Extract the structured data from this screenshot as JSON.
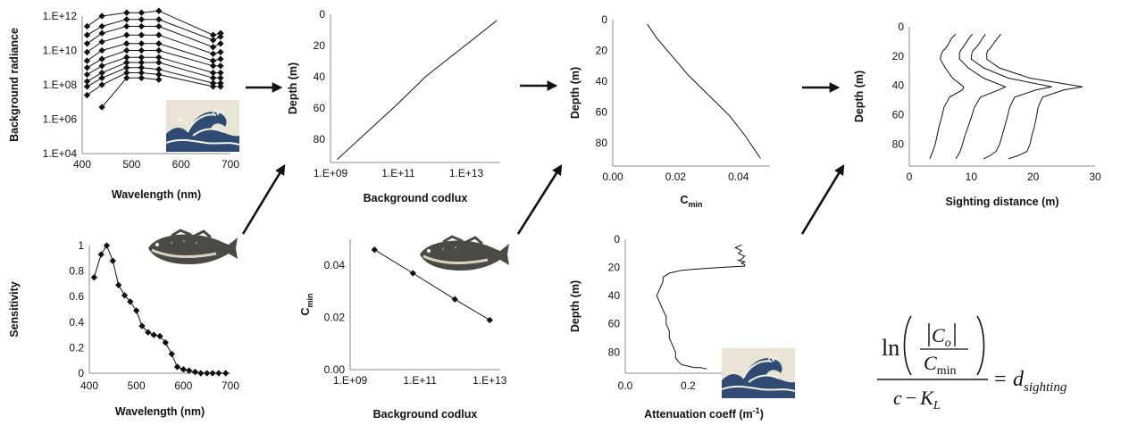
{
  "chart_data": [
    {
      "id": "radiance",
      "type": "line",
      "xlabel": "Wavelength (nm)",
      "ylabel": "Background radiance",
      "xlim": [
        400,
        700
      ],
      "ylim_log10": [
        4,
        12
      ],
      "yscale": "log",
      "xticks": [
        400,
        500,
        600,
        700
      ],
      "yticks": [
        {
          "v": 12,
          "label": "1.E+12"
        },
        {
          "v": 10,
          "label": "1.E+10"
        },
        {
          "v": 8,
          "label": "1.E+08"
        },
        {
          "v": 6,
          "label": "1.E+06"
        },
        {
          "v": 4,
          "label": "1.E+04"
        }
      ],
      "x": [
        410,
        440,
        490,
        520,
        555,
        665,
        680
      ],
      "series": [
        {
          "values_log10": [
            11.4,
            12.0,
            12.2,
            12.2,
            12.3,
            10.9,
            11.0
          ]
        },
        {
          "values_log10": [
            10.9,
            11.4,
            11.8,
            11.8,
            11.8,
            10.6,
            10.8
          ]
        },
        {
          "values_log10": [
            10.4,
            11.0,
            11.4,
            11.4,
            11.4,
            10.2,
            10.4
          ]
        },
        {
          "values_log10": [
            9.9,
            10.5,
            10.9,
            10.9,
            10.9,
            9.8,
            9.9
          ]
        },
        {
          "values_log10": [
            9.4,
            10.0,
            10.4,
            10.4,
            10.4,
            9.4,
            9.5
          ]
        },
        {
          "values_log10": [
            9.0,
            9.5,
            10.0,
            10.0,
            10.0,
            9.1,
            9.1
          ]
        },
        {
          "values_log10": [
            8.6,
            9.1,
            9.6,
            9.6,
            9.6,
            8.7,
            8.7
          ]
        },
        {
          "values_log10": [
            8.2,
            8.7,
            9.3,
            9.3,
            9.3,
            8.4,
            8.4
          ]
        },
        {
          "values_log10": [
            7.9,
            8.4,
            9.0,
            9.0,
            8.9,
            8.1,
            8.1
          ]
        },
        {
          "values_log10": [
            7.4,
            8.0,
            8.7,
            8.7,
            8.6,
            7.9,
            7.9
          ]
        },
        {
          "values_log10": [
            null,
            6.7,
            8.4,
            8.4,
            8.3,
            null,
            null
          ]
        }
      ]
    },
    {
      "id": "codlux",
      "type": "line",
      "xlabel": "Background codlux",
      "ylabel": "Depth (m)",
      "xscale": "log",
      "xlim_log10": [
        9,
        14
      ],
      "ylim": [
        0,
        95
      ],
      "y_inverted": true,
      "xticks": [
        {
          "v": 9,
          "label": "1.E+09"
        },
        {
          "v": 11,
          "label": "1.E+11"
        },
        {
          "v": 13,
          "label": "1.E+13"
        }
      ],
      "yticks": [
        0,
        20,
        40,
        60,
        80
      ],
      "series": [
        {
          "x_log10": [
            9.2,
            10.1,
            11.0,
            11.8,
            12.5,
            13.2,
            13.9
          ],
          "y": [
            93,
            75,
            57,
            40,
            28,
            16,
            4
          ]
        }
      ]
    },
    {
      "id": "cmin_depth",
      "type": "line",
      "xlabel": "C",
      "xlabel_sub": "min",
      "ylabel": "Depth (m)",
      "xlim": [
        0,
        0.05
      ],
      "ylim": [
        0,
        95
      ],
      "y_inverted": true,
      "xticks": [
        {
          "v": 0,
          "label": "0.00"
        },
        {
          "v": 0.02,
          "label": "0.02"
        },
        {
          "v": 0.04,
          "label": "0.04"
        }
      ],
      "yticks": [
        0,
        20,
        40,
        60,
        80
      ],
      "series": [
        {
          "x": [
            0.011,
            0.014,
            0.019,
            0.024,
            0.03,
            0.037,
            0.042,
            0.047
          ],
          "y": [
            3,
            12,
            24,
            36,
            48,
            62,
            75,
            90
          ]
        }
      ]
    },
    {
      "id": "sighting",
      "type": "line",
      "xlabel": "Sighting distance (m)",
      "ylabel": "Depth (m)",
      "xlim": [
        0,
        30
      ],
      "ylim": [
        0,
        95
      ],
      "y_inverted": true,
      "xticks": [
        0,
        10,
        20,
        30
      ],
      "yticks": [
        0,
        20,
        40,
        60,
        80
      ],
      "series": [
        {
          "x": [
            7.5,
            6.8,
            6.3,
            5.8,
            5.5,
            5.2,
            5.0,
            5.8,
            7.0,
            8.8,
            8.6,
            6.5,
            5.6,
            5.2,
            4.8,
            4.5,
            4.2,
            3.8,
            3.5,
            3.3
          ],
          "y": [
            5,
            8,
            12,
            15,
            16,
            18,
            22,
            28,
            35,
            41,
            43,
            48,
            55,
            62,
            68,
            74,
            80,
            85,
            88,
            90
          ]
        },
        {
          "x": [
            10.2,
            9.6,
            9.0,
            8.5,
            8.3,
            8.1,
            8.1,
            9.5,
            12.0,
            15.5,
            14.5,
            11.5,
            10.5,
            10.0,
            9.5,
            9.0,
            8.6,
            8.2,
            7.8,
            7.5
          ],
          "y": [
            5,
            8,
            12,
            15,
            16,
            18,
            22,
            28,
            35,
            41,
            43,
            48,
            55,
            62,
            68,
            74,
            80,
            85,
            88,
            90
          ]
        },
        {
          "x": [
            12.3,
            11.8,
            11.2,
            10.6,
            10.3,
            10.1,
            10.0,
            12.0,
            16.0,
            23.0,
            20.5,
            17.0,
            16.2,
            15.8,
            15.4,
            15.0,
            14.6,
            14.0,
            13.0,
            12.0
          ],
          "y": [
            5,
            8,
            12,
            15,
            16,
            18,
            22,
            28,
            35,
            41,
            43,
            48,
            55,
            62,
            68,
            74,
            80,
            85,
            88,
            90
          ]
        },
        {
          "x": [
            14.8,
            14.2,
            13.5,
            13.0,
            12.7,
            12.5,
            12.5,
            14.5,
            19.5,
            28.0,
            25.0,
            21.5,
            20.8,
            20.5,
            20.2,
            19.8,
            19.5,
            19.0,
            17.5,
            16.0
          ],
          "y": [
            5,
            8,
            12,
            15,
            16,
            18,
            22,
            28,
            35,
            41,
            43,
            48,
            55,
            62,
            68,
            74,
            80,
            85,
            88,
            90
          ]
        }
      ]
    },
    {
      "id": "sensitivity",
      "type": "line",
      "xlabel": "Wavelength (nm)",
      "ylabel": "Sensitivity",
      "xlim": [
        400,
        700
      ],
      "ylim": [
        0,
        1
      ],
      "xticks": [
        400,
        500,
        600,
        700
      ],
      "yticks": [
        0,
        0.2,
        0.4,
        0.6,
        0.8,
        1
      ],
      "series": [
        {
          "x": [
            410,
            425,
            437,
            450,
            462,
            475,
            487,
            500,
            512,
            525,
            537,
            550,
            562,
            575,
            587,
            600,
            612,
            625,
            637,
            650,
            662,
            675,
            690
          ],
          "y": [
            0.75,
            0.93,
            1.0,
            0.88,
            0.69,
            0.61,
            0.56,
            0.49,
            0.37,
            0.32,
            0.3,
            0.29,
            0.24,
            0.15,
            0.05,
            0.03,
            0.02,
            0.01,
            0.0,
            0.0,
            0.0,
            0.0,
            0.0
          ]
        }
      ]
    },
    {
      "id": "cmin_codlux",
      "type": "line",
      "xlabel": "Background codlux",
      "ylabel": "C",
      "ylabel_sub": "min",
      "xscale": "log",
      "xlim_log10": [
        9,
        13.3
      ],
      "ylim": [
        0,
        0.05
      ],
      "xticks": [
        {
          "v": 9,
          "label": "1.E+09"
        },
        {
          "v": 11,
          "label": "1.E+11"
        },
        {
          "v": 13,
          "label": "1.E+13"
        }
      ],
      "yticks": [
        {
          "v": 0,
          "label": "0.00"
        },
        {
          "v": 0.02,
          "label": "0.02"
        },
        {
          "v": 0.04,
          "label": "0.04"
        }
      ],
      "series": [
        {
          "x_log10": [
            9.7,
            10.8,
            12.0,
            13.0
          ],
          "y": [
            0.046,
            0.037,
            0.027,
            0.019
          ]
        }
      ]
    },
    {
      "id": "attenuation",
      "type": "line",
      "xlabel": "Attenuation coeff (m",
      "xlabel_sup": "-1",
      "xlabel_end": ")",
      "ylabel": "Depth (m)",
      "xlim": [
        0,
        0.5
      ],
      "ylim": [
        0,
        95
      ],
      "y_inverted": true,
      "xticks": [
        {
          "v": 0,
          "label": "0.0"
        },
        {
          "v": 0.2,
          "label": "0.2"
        },
        {
          "v": 0.4,
          "label": "0.4"
        }
      ],
      "yticks": [
        0,
        20,
        40,
        60,
        80
      ],
      "series": [
        {
          "x": [
            0.37,
            0.35,
            0.37,
            0.36,
            0.38,
            0.37,
            0.36,
            0.38,
            0.37,
            0.38,
            0.38,
            0.3,
            0.23,
            0.18,
            0.14,
            0.12,
            0.12,
            0.11,
            0.1,
            0.11,
            0.12,
            0.13,
            0.13,
            0.14,
            0.14,
            0.15,
            0.16,
            0.16,
            0.17,
            0.18,
            0.2,
            0.22,
            0.24,
            0.26
          ],
          "y": [
            4,
            6,
            8,
            10,
            12,
            14,
            15,
            16,
            17,
            18,
            19,
            20,
            21,
            22,
            24,
            27,
            30,
            35,
            40,
            45,
            50,
            55,
            60,
            65,
            70,
            75,
            80,
            84,
            87,
            89,
            90,
            91,
            91,
            92
          ]
        }
      ]
    }
  ],
  "equation": {
    "ln": "ln",
    "co": "C",
    "co_sub": "o",
    "cmin": "C",
    "cmin_sub": "min",
    "denom_c": "c",
    "denom_minus": "−",
    "denom_k": "K",
    "denom_k_sub": "L",
    "equals": "=",
    "d": "d",
    "d_sub": "sighting"
  },
  "icons": [
    "wave-icon",
    "wave-icon",
    "fish-icon",
    "fish-icon",
    "wave-icon"
  ],
  "colors": {
    "ink": "#111111",
    "axis": "#888888"
  }
}
